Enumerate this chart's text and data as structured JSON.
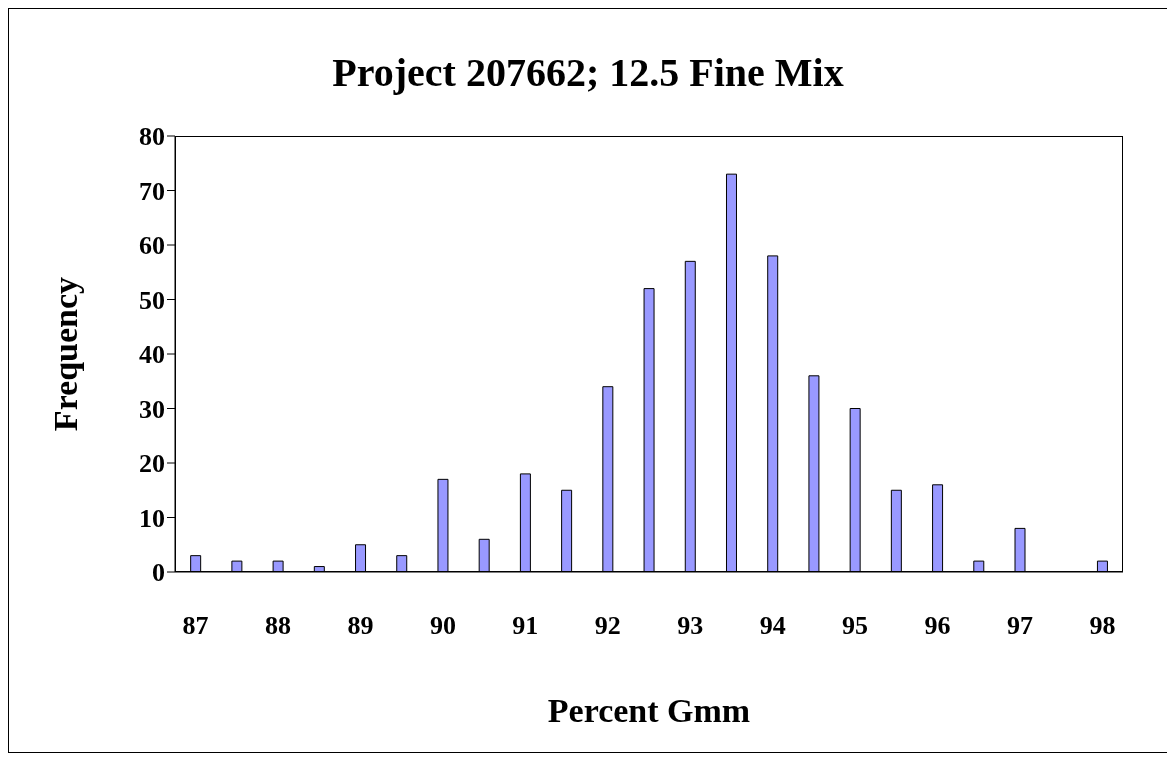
{
  "chart_data": {
    "type": "bar",
    "title": "Project 207662; 12.5 Fine Mix",
    "xlabel": "Percent Gmm",
    "ylabel": "Frequency",
    "categories": [
      "87",
      null,
      "88",
      null,
      "89",
      null,
      "90",
      null,
      "91",
      null,
      "92",
      null,
      "93",
      null,
      "94",
      null,
      "95",
      null,
      "96",
      null,
      "97",
      null,
      "98"
    ],
    "values": [
      3,
      2,
      2,
      1,
      5,
      3,
      17,
      6,
      18,
      15,
      34,
      52,
      57,
      73,
      58,
      36,
      30,
      15,
      16,
      2,
      8,
      0,
      2
    ],
    "color": "#9999ff",
    "ylim": [
      0,
      80
    ],
    "yticks": [
      0,
      10,
      20,
      30,
      40,
      50,
      60,
      70,
      80
    ]
  }
}
